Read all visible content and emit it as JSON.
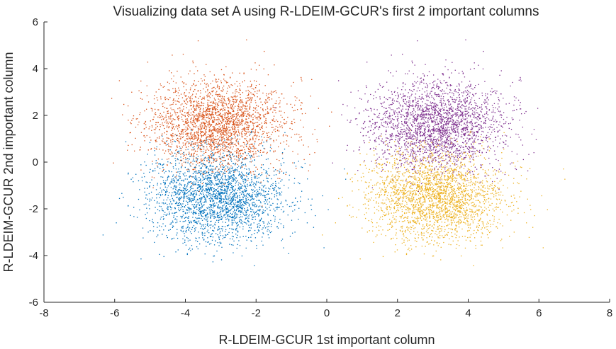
{
  "chart_data": {
    "type": "scatter",
    "title": "Visualizing data set A using R-LDEIM-GCUR's first 2 important columns",
    "xlabel": "R-LDEIM-GCUR 1st important column",
    "ylabel": "R-LDEIM-GCUR 2nd important column",
    "xlim": [
      -8,
      8
    ],
    "ylim": [
      -6,
      6
    ],
    "xticks": [
      "-8",
      "-6",
      "-4",
      "-2",
      "0",
      "2",
      "4",
      "6",
      "8"
    ],
    "yticks": [
      "-6",
      "-4",
      "-2",
      "0",
      "2",
      "4",
      "6"
    ],
    "grid": false,
    "legend": "none",
    "series": [
      {
        "center": [
          -3.1,
          1.6
        ],
        "spread": [
          0.95,
          0.95
        ],
        "count": 2500,
        "color": "#D95319"
      },
      {
        "center": [
          -3.1,
          -1.5
        ],
        "spread": [
          0.95,
          0.95
        ],
        "count": 2500,
        "color": "#0072BD"
      },
      {
        "center": [
          3.1,
          1.6
        ],
        "spread": [
          0.95,
          0.95
        ],
        "count": 2500,
        "color": "#7E2F8E"
      },
      {
        "center": [
          3.1,
          -1.5
        ],
        "spread": [
          0.95,
          0.95
        ],
        "count": 2500,
        "color": "#EDB120"
      }
    ]
  }
}
